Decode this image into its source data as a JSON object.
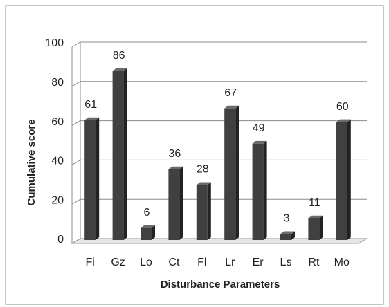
{
  "chart_data": {
    "type": "bar",
    "x_label": "Disturbance Parameters",
    "y_label": "Cumulative score",
    "categories": [
      "Fi",
      "Gz",
      "Lo",
      "Ct",
      "Fl",
      "Lr",
      "Er",
      "Ls",
      "Rt",
      "Mo"
    ],
    "values": [
      61,
      86,
      6,
      36,
      28,
      67,
      49,
      3,
      11,
      60
    ],
    "color": "#404040",
    "ylim": [
      0,
      100
    ],
    "yticks": [
      0,
      20,
      40,
      60,
      80,
      100
    ],
    "grid": true
  }
}
